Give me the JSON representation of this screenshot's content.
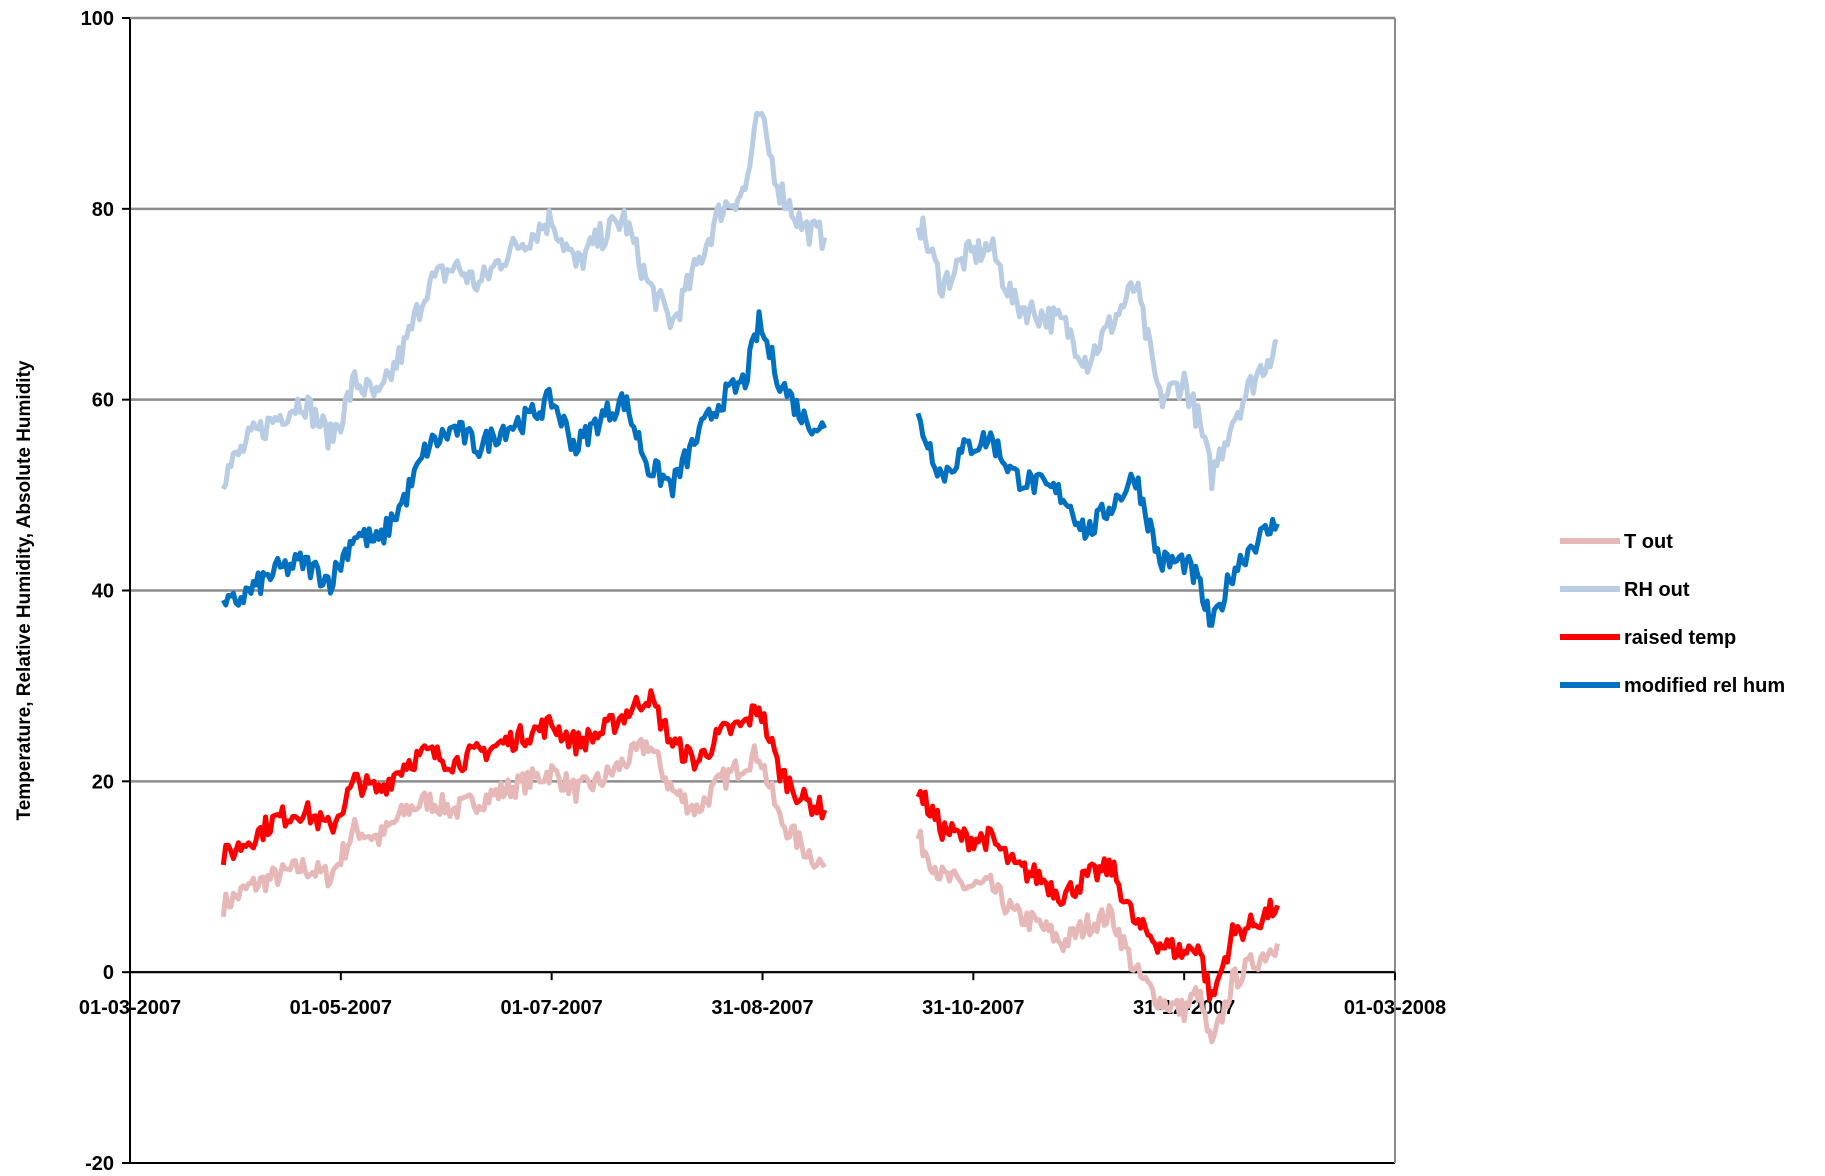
{
  "chart_data": {
    "type": "line",
    "title": "",
    "xlabel": "",
    "ylabel": "Temperature, Relative Humidity, Absolute Humidity",
    "x_ticks": [
      "01-03-2007",
      "01-05-2007",
      "01-07-2007",
      "31-08-2007",
      "31-10-2007",
      "31-12-2007",
      "01-03-2008"
    ],
    "y_ticks": [
      "-20",
      "0",
      "20",
      "40",
      "60",
      "80",
      "100"
    ],
    "xlim": [
      "2007-03-01",
      "2008-03-01"
    ],
    "ylim": [
      -20,
      100
    ],
    "grid": "horizontal",
    "legend_position": "right",
    "gap": [
      "2007-09-18",
      "2007-10-08"
    ],
    "x": [
      "2007-03-28",
      "2007-04-05",
      "2007-04-12",
      "2007-04-20",
      "2007-04-28",
      "2007-05-01",
      "2007-05-05",
      "2007-05-12",
      "2007-05-20",
      "2007-05-26",
      "2007-06-03",
      "2007-06-10",
      "2007-06-17",
      "2007-06-24",
      "2007-07-01",
      "2007-07-08",
      "2007-07-15",
      "2007-07-22",
      "2007-07-29",
      "2007-08-05",
      "2007-08-12",
      "2007-08-19",
      "2007-08-26",
      "2007-08-30",
      "2007-09-05",
      "2007-09-12",
      "2007-09-18",
      "2007-10-08",
      "2007-10-15",
      "2007-10-22",
      "2007-10-29",
      "2007-11-05",
      "2007-11-12",
      "2007-11-19",
      "2007-11-26",
      "2007-12-03",
      "2007-12-10",
      "2007-12-17",
      "2007-12-24",
      "2007-12-31",
      "2008-01-04",
      "2008-01-08",
      "2008-01-14",
      "2008-01-20",
      "2008-01-27"
    ],
    "series": [
      {
        "name": "T out",
        "color": "#e6b8b7",
        "values": [
          7,
          9,
          10,
          11,
          10,
          12,
          15,
          14,
          17,
          18,
          17,
          18,
          19,
          20,
          21,
          19,
          20,
          22,
          24,
          19,
          17,
          20,
          22,
          23,
          16,
          13,
          11,
          null,
          14,
          10,
          9,
          9,
          6,
          5,
          3,
          5,
          6,
          0,
          -3,
          -4,
          -2,
          -8,
          -1,
          1,
          3
        ]
      },
      {
        "name": "RH out",
        "color": "#b8cce4",
        "values": [
          52,
          56,
          58,
          60,
          56,
          58,
          62,
          60,
          66,
          72,
          74,
          72,
          75,
          77,
          79,
          74,
          77,
          79,
          72,
          68,
          74,
          80,
          82,
          90,
          82,
          78,
          77,
          null,
          79,
          72,
          75,
          76,
          70,
          69,
          68,
          64,
          68,
          72,
          60,
          62,
          58,
          52,
          58,
          62,
          66
        ]
      },
      {
        "name": "raised temp",
        "color": "#ff0000",
        "values": [
          12,
          14,
          16,
          17,
          15,
          17,
          20,
          19,
          22,
          23,
          22,
          23,
          24,
          25,
          26,
          24,
          25,
          27,
          29,
          24,
          22,
          25,
          26,
          28,
          21,
          18,
          17,
          null,
          19,
          15,
          14,
          14,
          11,
          10,
          8,
          10,
          11,
          5,
          3,
          2,
          3,
          -3,
          4,
          5,
          7
        ]
      },
      {
        "name": "modified rel hum",
        "color": "#0070c0",
        "values": [
          38,
          40,
          42,
          43,
          41,
          43,
          46,
          45,
          50,
          55,
          57,
          55,
          57,
          58,
          60,
          55,
          58,
          60,
          53,
          51,
          56,
          60,
          62,
          68,
          62,
          58,
          57,
          null,
          58,
          52,
          55,
          56,
          52,
          51,
          50,
          46,
          49,
          52,
          43,
          43,
          41,
          36,
          42,
          45,
          47
        ]
      }
    ]
  }
}
